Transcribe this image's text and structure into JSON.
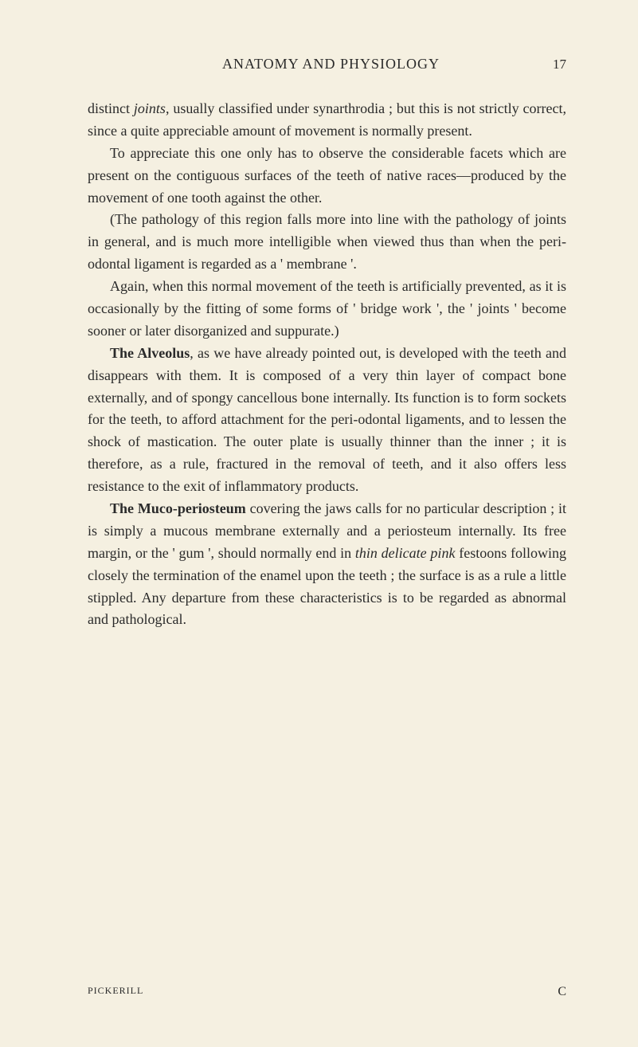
{
  "page": {
    "running_head": "ANATOMY AND PHYSIOLOGY",
    "number": "17"
  },
  "paragraphs": {
    "p1_a": "distinct ",
    "p1_italic": "joints",
    "p1_b": ", usually classified under synarthrodia ; but this is not strictly correct, since a quite appreciable amount of movement is normally present.",
    "p2": "To appreciate this one only has to observe the considerable facets which are present on the contiguous surfaces of the teeth of native races—produced by the movement of one tooth against the other.",
    "p3": "(The pathology of this region falls more into line with the pathology of joints in general, and is much more intelligible when viewed thus than when the peri-odontal ligament is regarded as a ' membrane '.",
    "p4": "Again, when this normal movement of the teeth is artificially prevented, as it is occasionally by the fitting of some forms of ' bridge work ', the ' joints ' become sooner or later disorganized and suppurate.)",
    "p5_bold": "The Alveolus",
    "p5_rest": ", as we have already pointed out, is developed with the teeth and disappears with them. It is composed of a very thin layer of compact bone externally, and of spongy cancellous bone internally. Its function is to form sockets for the teeth, to afford attachment for the peri-odontal ligaments, and to lessen the shock of mastication. The outer plate is usually thinner than the inner ; it is therefore, as a rule, fractured in the removal of teeth, and it also offers less resistance to the exit of inflammatory products.",
    "p6_bold": "The Muco-periosteum",
    "p6_a": " covering the jaws calls for no particular description ; it is simply a mucous membrane externally and a periosteum internally. Its free margin, or the ' gum ', should normally end in ",
    "p6_italic": "thin delicate pink",
    "p6_b": " festoons following closely the termination of the enamel upon the teeth ; the surface is as a rule a little stippled. Any departure from these characteristics is to be regarded as abnormal and pathological."
  },
  "footer": {
    "author": "PICKERILL",
    "sig": "C"
  },
  "colors": {
    "background": "#f5f0e1",
    "text": "#2a2a2a"
  }
}
